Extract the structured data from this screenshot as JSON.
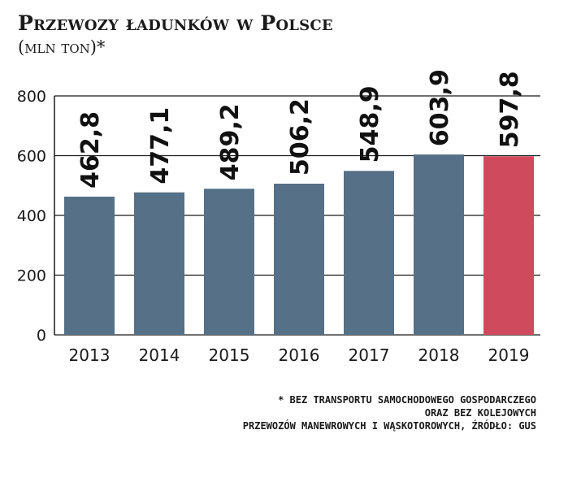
{
  "chart_data": {
    "type": "bar",
    "title": "Przewozy ładunków w Polsce",
    "subtitle": "(mln ton)*",
    "categories": [
      "2013",
      "2014",
      "2015",
      "2016",
      "2017",
      "2018",
      "2019"
    ],
    "values": [
      462.8,
      477.1,
      489.2,
      506.2,
      548.9,
      603.9,
      597.8
    ],
    "value_labels": [
      "462,8",
      "477,1",
      "489,2",
      "506,2",
      "548,9",
      "603,9",
      "597,8"
    ],
    "y_ticks": [
      0,
      200,
      400,
      600,
      800
    ],
    "ylim": [
      0,
      800
    ],
    "xlabel": "",
    "ylabel": "",
    "grid": true,
    "legend": "none",
    "colors": {
      "bar": "#557087",
      "highlight": "#cf4a5c",
      "highlight_index": 6,
      "grid": "#1a1a1a"
    }
  },
  "footnote": {
    "line1": "* BEZ TRANSPORTU SAMOCHODOWEGO GOSPODARCZEGO",
    "line2": "ORAZ BEZ KOLEJOWYCH",
    "line3": "PRZEWOZÓW MANEWROWYCH I WĄSKOTOROWYCH, ŹRÓDŁO: GUS"
  }
}
